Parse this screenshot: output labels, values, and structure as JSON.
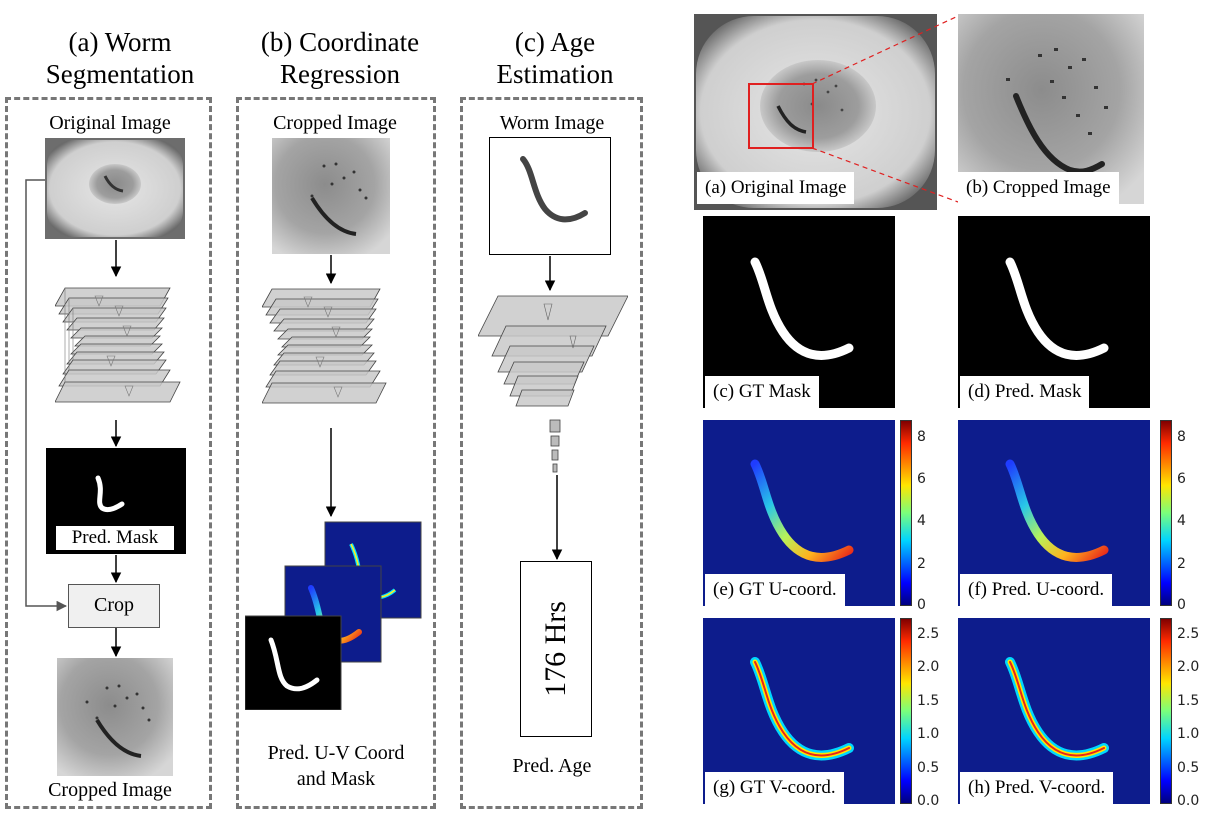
{
  "left": {
    "col_a": {
      "title_line1": "(a) Worm",
      "title_line2": "Segmentation",
      "input_label": "Original Image",
      "mask_label": "Pred.  Mask",
      "crop_label": "Crop",
      "output_label": "Cropped Image"
    },
    "col_b": {
      "title_line1": "(b) Coordinate",
      "title_line2": "Regression",
      "input_label": "Cropped Image",
      "output_line1": "Pred. U-V Coord",
      "output_line2": "and Mask"
    },
    "col_c": {
      "title_line1": "(c) Age",
      "title_line2": "Estimation",
      "input_label": "Worm Image",
      "age_value": "176 Hrs",
      "output_label": "Pred. Age"
    }
  },
  "right": {
    "captions": {
      "a": "(a) Original Image",
      "b": "(b) Cropped Image",
      "c": "(c) GT Mask",
      "d": "(d) Pred. Mask",
      "e": "(e) GT U-coord.",
      "f": "(f) Pred. U-coord.",
      "g": "(g) GT V-coord.",
      "h": "(h) Pred. V-coord."
    },
    "u_colorbar_ticks": [
      "8",
      "6",
      "4",
      "2",
      "0"
    ],
    "v_colorbar_ticks": [
      "2.5",
      "2.0",
      "1.5",
      "1.0",
      "0.5",
      "0.0"
    ]
  },
  "colors": {
    "dash_border": "#777777",
    "crop_box": "#e02020",
    "field_blue": "#0d1c8c"
  }
}
